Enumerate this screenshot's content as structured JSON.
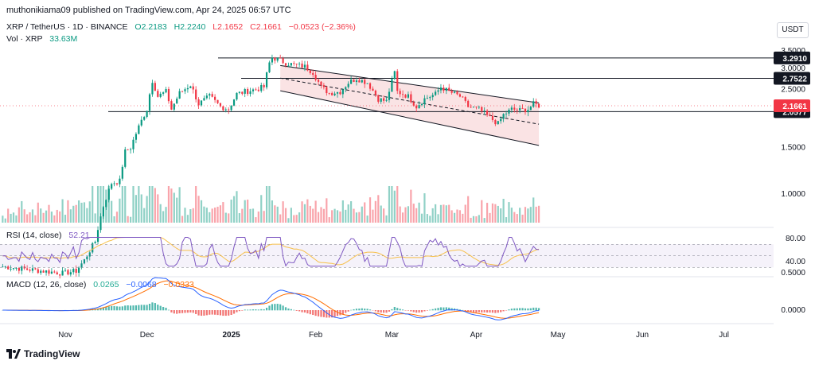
{
  "header": {
    "publisher": "muthonikiama09 published on TradingView.com, Apr 24, 2025 06:57 UTC"
  },
  "symbol": {
    "pair": "XRP / TetherUS · 1D · BINANCE",
    "o": "O2.2183",
    "h": "H2.2240",
    "l": "L2.1652",
    "c": "C2.1661",
    "chg": "−0.0523 (−2.36%)"
  },
  "volume": {
    "label": "Vol · XRP",
    "value": "33.63M"
  },
  "currency": "USDT",
  "rsi": {
    "label": "RSI (14, close)",
    "value": "52.21"
  },
  "macd": {
    "label": "MACD (12, 26, close)",
    "v1": "0.0265",
    "v2": "−0.0068",
    "v3": "−0.0333"
  },
  "logo_text": "TradingView",
  "colors": {
    "up": "#089981",
    "down": "#f23645",
    "channel_fill": "#f8d7d9",
    "rsi_line": "#7e57c2",
    "rsi_ma": "#f7c04a",
    "macd_line": "#2962ff",
    "signal_line": "#ff6d00"
  },
  "chart_data": {
    "type": "candlestick",
    "x_labels": [
      "Nov",
      "Dec",
      "2025",
      "Feb",
      "Mar",
      "Apr",
      "May",
      "Jun",
      "Jul"
    ],
    "price_ticks": [
      "3.5000",
      "3.0000",
      "2.5000",
      "1.5000",
      "1.0000"
    ],
    "rsi_ticks": [
      "80.00",
      "40.00"
    ],
    "macd_ticks": [
      "0.5000",
      "0.0000"
    ],
    "levels": [
      {
        "label": "3.2910",
        "value": 3.291
      },
      {
        "label": "2.7522",
        "value": 2.7522
      },
      {
        "label": "2.0577",
        "value": 2.0577
      }
    ],
    "last_price": {
      "label": "2.1661",
      "value": 2.1661
    },
    "channel": {
      "upper": {
        "from": [
          "2025-01-19",
          3.08
        ],
        "to": [
          "2025-04-24",
          2.22
        ]
      },
      "lower": {
        "from": [
          "2025-01-19",
          2.47
        ],
        "to": [
          "2025-04-24",
          1.53
        ]
      }
    },
    "price_path": [
      [
        "2024-10-09",
        0.53
      ],
      [
        "2024-10-31",
        0.5
      ],
      [
        "2024-11-05",
        0.51
      ],
      [
        "2024-11-08",
        0.56
      ],
      [
        "2024-11-12",
        0.66
      ],
      [
        "2024-11-15",
        0.9
      ],
      [
        "2024-11-18",
        1.1
      ],
      [
        "2024-11-21",
        1.12
      ],
      [
        "2024-11-23",
        1.45
      ],
      [
        "2024-11-25",
        1.5
      ],
      [
        "2024-11-28",
        1.8
      ],
      [
        "2024-12-01",
        2.1
      ],
      [
        "2024-12-03",
        2.7
      ],
      [
        "2024-12-05",
        2.35
      ],
      [
        "2024-12-08",
        2.45
      ],
      [
        "2024-12-10",
        2.1
      ],
      [
        "2024-12-13",
        2.42
      ],
      [
        "2024-12-17",
        2.6
      ],
      [
        "2024-12-20",
        2.2
      ],
      [
        "2024-12-24",
        2.35
      ],
      [
        "2024-12-28",
        2.15
      ],
      [
        "2024-12-31",
        2.1
      ],
      [
        "2025-01-03",
        2.4
      ],
      [
        "2025-01-06",
        2.45
      ],
      [
        "2025-01-10",
        2.5
      ],
      [
        "2025-01-13",
        2.55
      ],
      [
        "2025-01-15",
        3.15
      ],
      [
        "2025-01-16",
        3.3
      ],
      [
        "2025-01-18",
        3.25
      ],
      [
        "2025-01-21",
        3.15
      ],
      [
        "2025-01-24",
        3.1
      ],
      [
        "2025-01-28",
        3.05
      ],
      [
        "2025-01-31",
        2.9
      ],
      [
        "2025-02-03",
        2.55
      ],
      [
        "2025-02-06",
        2.42
      ],
      [
        "2025-02-10",
        2.45
      ],
      [
        "2025-02-13",
        2.65
      ],
      [
        "2025-02-16",
        2.75
      ],
      [
        "2025-02-20",
        2.65
      ],
      [
        "2025-02-24",
        2.3
      ],
      [
        "2025-02-27",
        2.25
      ],
      [
        "2025-03-02",
        2.9
      ],
      [
        "2025-03-03",
        2.45
      ],
      [
        "2025-03-07",
        2.35
      ],
      [
        "2025-03-10",
        2.15
      ],
      [
        "2025-03-13",
        2.3
      ],
      [
        "2025-03-17",
        2.4
      ],
      [
        "2025-03-19",
        2.55
      ],
      [
        "2025-03-22",
        2.45
      ],
      [
        "2025-03-26",
        2.35
      ],
      [
        "2025-03-29",
        2.15
      ],
      [
        "2025-04-02",
        2.1
      ],
      [
        "2025-04-06",
        1.95
      ],
      [
        "2025-04-09",
        1.85
      ],
      [
        "2025-04-11",
        2.0
      ],
      [
        "2025-04-14",
        2.1
      ],
      [
        "2025-04-17",
        2.08
      ],
      [
        "2025-04-20",
        2.1
      ],
      [
        "2025-04-22",
        2.2
      ],
      [
        "2025-04-24",
        2.17
      ]
    ]
  }
}
